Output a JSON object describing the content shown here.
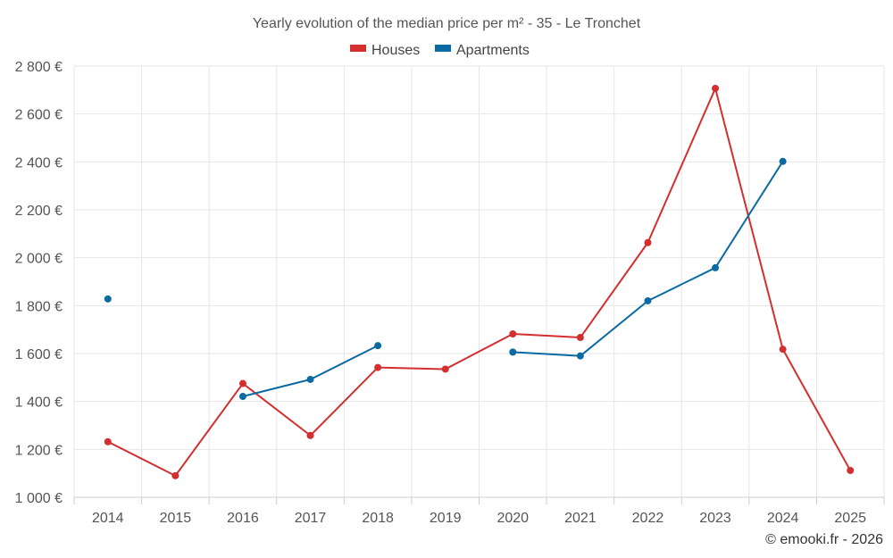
{
  "chart_data": {
    "type": "line",
    "title": "Yearly evolution of the median price per m² - 35 - Le Tronchet",
    "categories": [
      "2014",
      "2015",
      "2016",
      "2017",
      "2018",
      "2019",
      "2020",
      "2021",
      "2022",
      "2023",
      "2024",
      "2025"
    ],
    "y_ticks": [
      "1 000 €",
      "1 200 €",
      "1 400 €",
      "1 600 €",
      "1 800 €",
      "2 000 €",
      "2 200 €",
      "2 400 €",
      "2 600 €",
      "2 800 €"
    ],
    "ylim": [
      1000,
      2800
    ],
    "grid": true,
    "legend_position": "top-center",
    "series": [
      {
        "name": "Houses",
        "color": "#d32f2f",
        "values": [
          1232,
          1090,
          1475,
          1258,
          1542,
          1535,
          1682,
          1667,
          2063,
          2707,
          1618,
          1112
        ]
      },
      {
        "name": "Apartments",
        "color": "#0a6aa1",
        "values": [
          1828,
          null,
          1421,
          1492,
          1633,
          null,
          1606,
          1590,
          1820,
          1958,
          2402,
          null
        ]
      }
    ],
    "credit": "© emooki.fr - 2026"
  }
}
